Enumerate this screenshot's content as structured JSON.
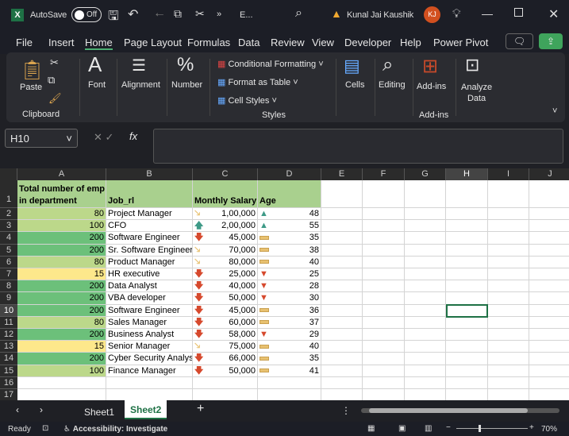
{
  "titlebar": {
    "autosave": "AutoSave",
    "toggle": "Off",
    "filename": "E...",
    "user": "Kunal Jai Kaushik",
    "initials": "KJ"
  },
  "menu": [
    "File",
    "Insert",
    "Home",
    "Page Layout",
    "Formulas",
    "Data",
    "Review",
    "View",
    "Developer",
    "Help",
    "Power Pivot"
  ],
  "ribbon": {
    "paste": "Paste",
    "clipboard": "Clipboard",
    "font": "Font",
    "alignment": "Alignment",
    "number": "Number",
    "cond": "Conditional Formatting",
    "fat": "Format as Table",
    "cellstyles": "Cell Styles",
    "styles": "Styles",
    "cells": "Cells",
    "editing": "Editing",
    "addins": "Add-ins",
    "addins_group": "Add-ins",
    "analyze1": "Analyze",
    "analyze2": "Data"
  },
  "namebox": "H10",
  "fx": "fx",
  "columns": [
    "A",
    "B",
    "C",
    "D",
    "E",
    "F",
    "G",
    "H",
    "I",
    "J"
  ],
  "headers": {
    "a1": "Total number of emp",
    "a2": "in department",
    "b": "Job_rl",
    "c": "Monthly Salary",
    "d": "Age"
  },
  "rows": [
    {
      "n": "80",
      "job": "Project Manager",
      "sal": "1,00,000",
      "age": "48",
      "si": "diag",
      "ai": "up"
    },
    {
      "n": "100",
      "job": "CFO",
      "sal": "2,00,000",
      "age": "55",
      "si": "up",
      "ai": "up"
    },
    {
      "n": "200",
      "job": "Software Engineer",
      "sal": "45,000",
      "age": "35",
      "si": "down",
      "ai": "flat"
    },
    {
      "n": "200",
      "job": "Sr. Software Engineer",
      "sal": "70,000",
      "age": "38",
      "si": "diag",
      "ai": "flat"
    },
    {
      "n": "80",
      "job": "Product Manager",
      "sal": "80,000",
      "age": "40",
      "si": "diag",
      "ai": "flat"
    },
    {
      "n": "15",
      "job": "HR executive",
      "sal": "25,000",
      "age": "25",
      "si": "down",
      "ai": "down"
    },
    {
      "n": "200",
      "job": "Data Analyst",
      "sal": "40,000",
      "age": "28",
      "si": "down",
      "ai": "down"
    },
    {
      "n": "200",
      "job": "VBA developer",
      "sal": "50,000",
      "age": "30",
      "si": "down",
      "ai": "down"
    },
    {
      "n": "200",
      "job": "Software Engineer",
      "sal": "45,000",
      "age": "36",
      "si": "down",
      "ai": "flat"
    },
    {
      "n": "80",
      "job": "Sales Manager",
      "sal": "60,000",
      "age": "37",
      "si": "down",
      "ai": "flat"
    },
    {
      "n": "200",
      "job": "Business Analyst",
      "sal": "58,000",
      "age": "29",
      "si": "down",
      "ai": "down"
    },
    {
      "n": "15",
      "job": "Senior Manager",
      "sal": "75,000",
      "age": "40",
      "si": "diag",
      "ai": "flat"
    },
    {
      "n": "200",
      "job": "Cyber Security Analyst",
      "sal": "66,000",
      "age": "35",
      "si": "down",
      "ai": "flat"
    },
    {
      "n": "100",
      "job": "Finance Manager",
      "sal": "50,000",
      "age": "41",
      "si": "down",
      "ai": "flat"
    }
  ],
  "colors": {
    "n200": "#6cc07a",
    "n100": "#bcd88a",
    "n80": "#bcd88a",
    "n15": "#fde88b",
    "header": "#a9d08e",
    "up": "#3e9a87",
    "down": "#d6492d",
    "flat": "#e8c170"
  },
  "sheets": [
    "Sheet1",
    "Sheet2"
  ],
  "active_sheet": "Sheet2",
  "status": {
    "ready": "Ready",
    "access": "Accessibility: Investigate",
    "zoom": "70%"
  }
}
